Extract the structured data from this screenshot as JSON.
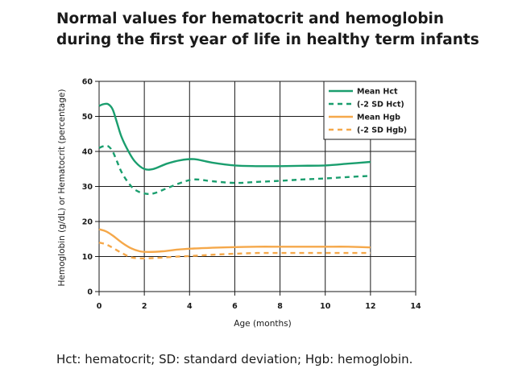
{
  "title_line1": "Normal values for hematocrit and hemoglobin",
  "title_line2": "during the first year of life in healthy term infants",
  "footnote": "Hct: hematocrit; SD: standard deviation; Hgb: hemoglobin.",
  "chart_data": {
    "type": "line",
    "xlabel": "Age (months)",
    "ylabel": "Hemoglobin (g/dL) or Hematocrit (percentage)",
    "xlim": [
      0,
      14
    ],
    "ylim": [
      0,
      60
    ],
    "xticks": [
      0,
      2,
      4,
      6,
      8,
      10,
      12,
      14
    ],
    "yticks": [
      0,
      10,
      20,
      30,
      40,
      50,
      60
    ],
    "legend_position": "top-right",
    "series": [
      {
        "name": "Mean Hct",
        "color": "#1a9e6e",
        "dashed": false,
        "x": [
          0,
          0.2,
          0.4,
          0.6,
          0.8,
          1.0,
          1.3,
          1.6,
          2.0,
          2.4,
          3.0,
          3.6,
          4.2,
          5.0,
          6.0,
          7.0,
          8.0,
          9.0,
          10.0,
          11.0,
          12.0
        ],
        "y": [
          53,
          53.5,
          53.5,
          52,
          48,
          44,
          40,
          37,
          35,
          35,
          36.5,
          37.5,
          37.8,
          36.8,
          36,
          35.8,
          35.8,
          35.9,
          36,
          36.5,
          37
        ]
      },
      {
        "name": "(-2 SD Hct)",
        "color": "#1a9e6e",
        "dashed": true,
        "x": [
          0,
          0.2,
          0.4,
          0.6,
          0.8,
          1.0,
          1.3,
          1.6,
          2.0,
          2.4,
          3.0,
          3.6,
          4.2,
          5.0,
          6.0,
          7.0,
          8.0,
          9.0,
          10.0,
          11.0,
          12.0
        ],
        "y": [
          41,
          41.5,
          41.5,
          40,
          37,
          34,
          31,
          29,
          28,
          28,
          29.5,
          31,
          32,
          31.5,
          31,
          31.3,
          31.6,
          32,
          32.3,
          32.7,
          33
        ]
      },
      {
        "name": "Mean Hgb",
        "color": "#f5a84a",
        "dashed": false,
        "x": [
          0,
          0.3,
          0.6,
          1.0,
          1.4,
          1.8,
          2.2,
          2.8,
          3.5,
          4.2,
          5.0,
          6.0,
          7.0,
          8.0,
          9.0,
          10.0,
          11.0,
          12.0
        ],
        "y": [
          17.8,
          17.2,
          16,
          14,
          12.4,
          11.5,
          11.3,
          11.5,
          12,
          12.3,
          12.5,
          12.7,
          12.8,
          12.8,
          12.8,
          12.8,
          12.8,
          12.6
        ]
      },
      {
        "name": "(-2 SD Hgb)",
        "color": "#f5a84a",
        "dashed": true,
        "x": [
          0,
          0.3,
          0.6,
          1.0,
          1.4,
          1.8,
          2.2,
          2.8,
          3.5,
          4.2,
          5.0,
          6.0,
          7.0,
          8.0,
          9.0,
          10.0,
          11.0,
          12.0
        ],
        "y": [
          14,
          13.5,
          12.5,
          11,
          9.8,
          9.5,
          9.5,
          9.7,
          10,
          10.2,
          10.5,
          10.8,
          11,
          11,
          11,
          11,
          11,
          11
        ]
      }
    ]
  }
}
